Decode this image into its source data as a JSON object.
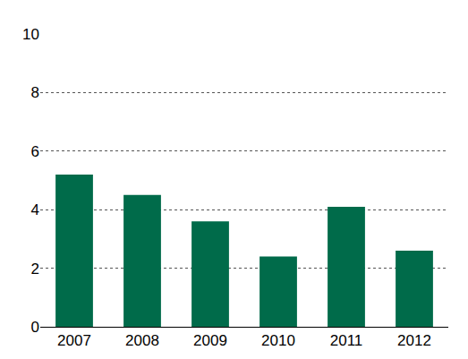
{
  "chart_data": {
    "type": "bar",
    "categories": [
      "2007",
      "2008",
      "2009",
      "2010",
      "2011",
      "2012"
    ],
    "values": [
      5.2,
      4.5,
      3.6,
      2.4,
      4.1,
      2.6
    ],
    "color": "#006b4a",
    "ylim": [
      0,
      10
    ],
    "yticks": [
      0,
      2,
      4,
      6,
      8,
      10
    ],
    "grid": true
  }
}
